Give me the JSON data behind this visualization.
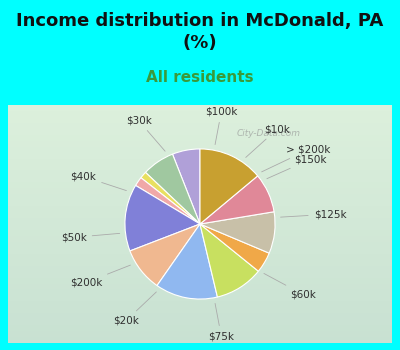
{
  "title": "Income distribution in McDonald, PA\n(%)",
  "subtitle": "All residents",
  "title_fontsize": 13,
  "subtitle_fontsize": 11,
  "bg_color": "#00FFFF",
  "chart_bg_top": "#e8f5ee",
  "chart_bg_bottom": "#c8eedd",
  "watermark": "City-Data.com",
  "labels": [
    "$100k",
    "$10k",
    "> $200k",
    "$150k",
    "$125k",
    "$60k",
    "$75k",
    "$20k",
    "$200k",
    "$50k",
    "$40k",
    "$30k"
  ],
  "sizes": [
    6.0,
    7.0,
    1.5,
    2.0,
    14.5,
    9.5,
    13.5,
    10.5,
    4.5,
    9.0,
    8.5,
    14.0
  ],
  "colors": [
    "#b0a0d8",
    "#a0c8a0",
    "#e8e060",
    "#f0a8a8",
    "#8080d8",
    "#f0b890",
    "#90b8f0",
    "#c8e060",
    "#f0a848",
    "#c8c0a8",
    "#e08898",
    "#c8a030"
  ],
  "startangle": 90,
  "label_fontsize": 7.5,
  "label_color": "#303030"
}
